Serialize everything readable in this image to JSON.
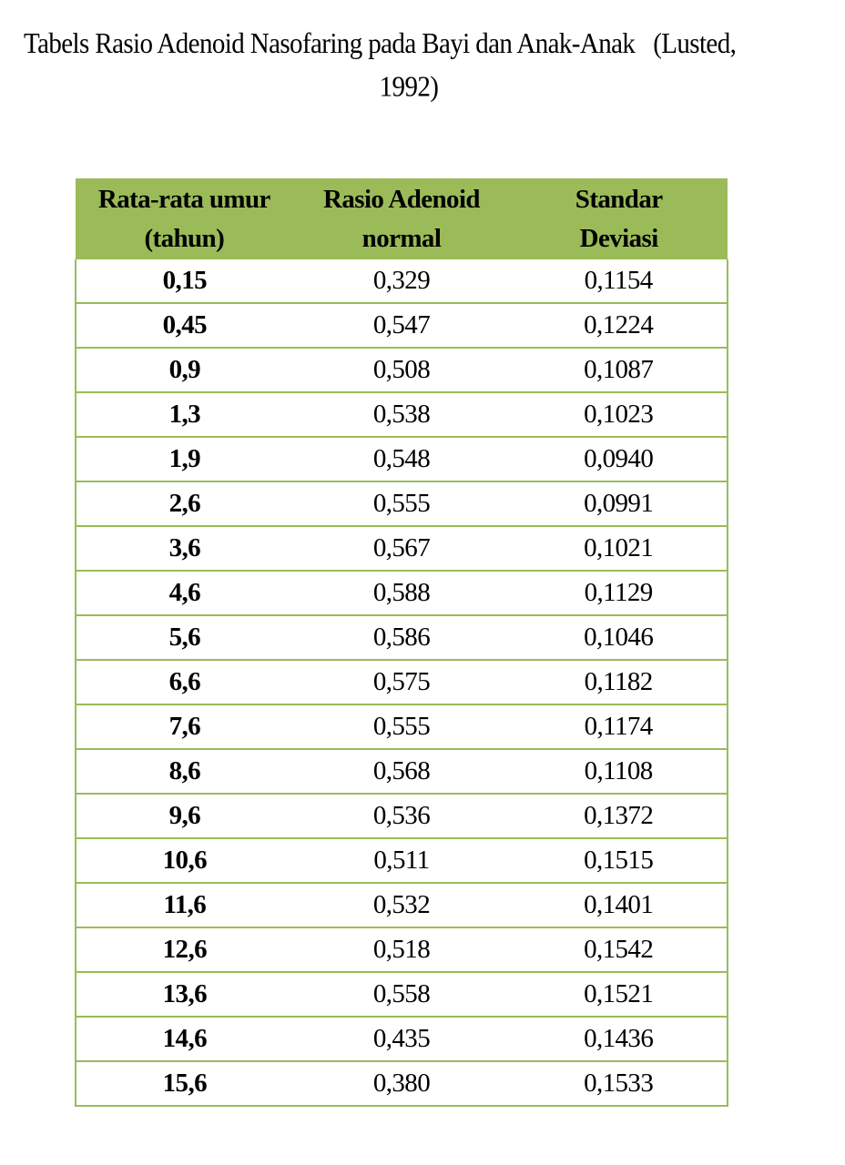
{
  "title_lines": [
    "Tabels Rasio Adenoid Nasofaring pada Bayi dan Anak-Anak   (Lusted,",
    "1992)"
  ],
  "table": {
    "header": [
      [
        "Rata-rata umur",
        "(tahun)"
      ],
      [
        "Rasio Adenoid",
        "normal"
      ],
      [
        "Standar",
        "Deviasi"
      ]
    ],
    "rows": [
      [
        "0,15",
        "0,329",
        "0,1154"
      ],
      [
        "0,45",
        "0,547",
        "0,1224"
      ],
      [
        "0,9",
        "0,508",
        "0,1087"
      ],
      [
        "1,3",
        "0,538",
        "0,1023"
      ],
      [
        "1,9",
        "0,548",
        "0,0940"
      ],
      [
        "2,6",
        "0,555",
        "0,0991"
      ],
      [
        "3,6",
        "0,567",
        "0,1021"
      ],
      [
        "4,6",
        "0,588",
        "0,1129"
      ],
      [
        "5,6",
        "0,586",
        "0,1046"
      ],
      [
        "6,6",
        "0,575",
        "0,1182"
      ],
      [
        "7,6",
        "0,555",
        "0,1174"
      ],
      [
        "8,6",
        "0,568",
        "0,1108"
      ],
      [
        "9,6",
        "0,536",
        "0,1372"
      ],
      [
        "10,6",
        "0,511",
        "0,1515"
      ],
      [
        "11,6",
        "0,532",
        "0,1401"
      ],
      [
        "12,6",
        "0,518",
        "0,1542"
      ],
      [
        "13,6",
        "0,558",
        "0,1521"
      ],
      [
        "14,6",
        "0,435",
        "0,1436"
      ],
      [
        "15,6",
        "0,380",
        "0,1533"
      ]
    ]
  }
}
